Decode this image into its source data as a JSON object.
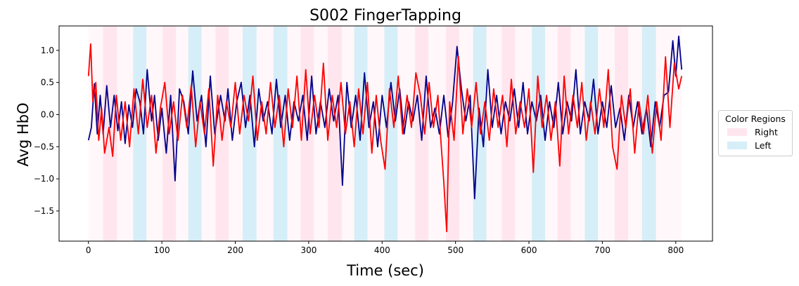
{
  "chart_data": {
    "type": "line",
    "title": "S002 FingerTapping",
    "xlabel": "Time (sec)",
    "ylabel": "Avg HbO",
    "xlim": [
      -40,
      850
    ],
    "ylim": [
      -1.97,
      1.38
    ],
    "xticks": [
      0,
      100,
      200,
      300,
      400,
      500,
      600,
      700,
      800
    ],
    "yticks": [
      -1.5,
      -1.0,
      -0.5,
      0.0,
      0.5,
      1.0
    ],
    "ytick_labels": [
      "−1.5",
      "−1.0",
      "−0.5",
      "0.0",
      "0.5",
      "1.0"
    ],
    "grid": false,
    "regions": {
      "right_color": "#ffe6ee",
      "left_color": "#d6eef8",
      "rest_color": "#fff7fa",
      "right": [
        [
          20,
          39
        ],
        [
          101,
          119
        ],
        [
          173,
          191
        ],
        [
          289,
          307
        ],
        [
          326,
          345
        ],
        [
          445,
          463
        ],
        [
          487,
          505
        ],
        [
          563,
          581
        ],
        [
          639,
          657
        ],
        [
          717,
          735
        ]
      ],
      "left": [
        [
          61,
          79
        ],
        [
          136,
          154
        ],
        [
          210,
          229
        ],
        [
          252,
          271
        ],
        [
          362,
          380
        ],
        [
          403,
          421
        ],
        [
          524,
          542
        ],
        [
          604,
          622
        ],
        [
          676,
          694
        ],
        [
          754,
          773
        ]
      ],
      "rest_span": [
        0,
        808
      ]
    },
    "legend": {
      "title": "Color Regions",
      "placement": "center-right-outside",
      "entries": [
        {
          "label": "Right",
          "color": "#ffe6ee"
        },
        {
          "label": "Left",
          "color": "#d6eef8"
        }
      ]
    },
    "series": [
      {
        "name": "dark-blue-series",
        "color": "#00008b",
        "x": [
          0,
          4,
          8,
          12,
          16,
          20,
          25,
          30,
          35,
          40,
          45,
          50,
          55,
          60,
          65,
          70,
          75,
          80,
          86,
          90,
          95,
          100,
          106,
          112,
          118,
          124,
          130,
          136,
          142,
          148,
          154,
          160,
          166,
          172,
          180,
          186,
          190,
          196,
          202,
          208,
          214,
          220,
          226,
          232,
          238,
          244,
          250,
          256,
          262,
          268,
          274,
          280,
          286,
          292,
          298,
          304,
          310,
          316,
          322,
          328,
          334,
          340,
          346,
          352,
          358,
          364,
          370,
          376,
          382,
          388,
          394,
          400,
          406,
          412,
          418,
          424,
          430,
          436,
          442,
          448,
          454,
          460,
          466,
          472,
          478,
          484,
          490,
          496,
          502,
          508,
          514,
          520,
          526,
          532,
          538,
          544,
          550,
          556,
          562,
          568,
          574,
          580,
          586,
          592,
          598,
          604,
          610,
          616,
          622,
          628,
          634,
          640,
          646,
          652,
          658,
          664,
          670,
          676,
          682,
          688,
          694,
          700,
          706,
          712,
          718,
          724,
          730,
          736,
          742,
          748,
          754,
          760,
          766,
          772,
          778,
          784,
          790,
          796,
          800,
          804,
          808
        ],
        "y": [
          -0.4,
          -0.2,
          0.48,
          -0.3,
          0.3,
          -0.3,
          0.45,
          -0.2,
          0.3,
          -0.25,
          0.2,
          -0.45,
          0.15,
          -0.2,
          0.4,
          0.2,
          -0.3,
          0.7,
          -0.1,
          0.3,
          -0.4,
          0.1,
          -0.6,
          0.3,
          -1.03,
          0.4,
          0.2,
          -0.3,
          0.68,
          -0.1,
          0.3,
          -0.5,
          0.6,
          -0.3,
          0.3,
          -0.1,
          0.4,
          -0.4,
          0.2,
          0.5,
          -0.2,
          0.3,
          -0.5,
          0.4,
          -0.1,
          0.2,
          -0.3,
          0.55,
          -0.2,
          0.3,
          -0.4,
          0.2,
          -0.1,
          0.3,
          -0.4,
          0.6,
          -0.3,
          0.2,
          -0.2,
          0.4,
          -0.1,
          0.3,
          -1.1,
          0.5,
          -0.2,
          0.3,
          -0.4,
          0.65,
          -0.2,
          0.2,
          -0.5,
          0.3,
          -0.2,
          0.5,
          -0.1,
          0.4,
          -0.3,
          0.2,
          -0.1,
          0.3,
          -0.4,
          0.6,
          -0.2,
          0.1,
          -0.3,
          0.3,
          -0.35,
          0.2,
          1.06,
          0.4,
          -0.1,
          0.3,
          -1.31,
          0.1,
          -0.5,
          0.7,
          -0.2,
          0.3,
          -0.3,
          0.2,
          -0.1,
          0.4,
          -0.2,
          0.5,
          -0.3,
          0.2,
          -0.1,
          0.3,
          -0.4,
          0.2,
          -0.2,
          0.5,
          -0.3,
          0.2,
          -0.1,
          0.7,
          -0.3,
          0.2,
          -0.1,
          0.55,
          -0.3,
          0.2,
          -0.2,
          0.45,
          -0.2,
          0.1,
          -0.4,
          0.3,
          -0.2,
          0.2,
          -0.3,
          0.1,
          -0.5,
          0.2,
          -0.2,
          0.3,
          0.35,
          1.15,
          0.6,
          1.22,
          0.7
        ]
      },
      {
        "name": "red-series",
        "color": "#ff0000",
        "x": [
          0,
          3,
          6,
          10,
          14,
          18,
          22,
          28,
          33,
          38,
          44,
          50,
          56,
          62,
          68,
          74,
          80,
          86,
          92,
          98,
          104,
          110,
          116,
          122,
          128,
          134,
          140,
          146,
          152,
          158,
          164,
          170,
          176,
          182,
          188,
          194,
          200,
          206,
          212,
          218,
          224,
          230,
          236,
          242,
          248,
          254,
          260,
          266,
          272,
          278,
          284,
          290,
          296,
          302,
          308,
          314,
          320,
          326,
          332,
          338,
          344,
          350,
          356,
          362,
          368,
          374,
          380,
          386,
          392,
          398,
          404,
          410,
          416,
          422,
          428,
          434,
          440,
          446,
          452,
          458,
          464,
          470,
          476,
          480,
          484,
          488,
          492,
          498,
          504,
          510,
          516,
          522,
          528,
          534,
          540,
          546,
          552,
          558,
          564,
          570,
          576,
          582,
          588,
          594,
          600,
          606,
          612,
          618,
          624,
          630,
          636,
          642,
          648,
          654,
          660,
          666,
          672,
          678,
          684,
          690,
          696,
          702,
          708,
          714,
          720,
          726,
          732,
          738,
          744,
          750,
          756,
          762,
          768,
          774,
          780,
          786,
          792,
          798,
          804,
          808
        ],
        "y": [
          0.6,
          1.1,
          0.2,
          0.5,
          -0.4,
          0.1,
          -0.6,
          -0.2,
          -0.65,
          0.3,
          -0.4,
          0.2,
          -0.5,
          0.4,
          -0.3,
          0.55,
          -0.2,
          0.3,
          -0.6,
          0.1,
          0.5,
          -0.3,
          0.2,
          -0.4,
          0.3,
          -0.2,
          0.45,
          -0.5,
          0.2,
          -0.3,
          0.4,
          -0.8,
          0.3,
          -0.4,
          0.2,
          -0.2,
          0.5,
          -0.3,
          0.3,
          -0.1,
          0.6,
          -0.4,
          0.2,
          -0.3,
          0.5,
          -0.2,
          0.3,
          -0.5,
          0.4,
          -0.2,
          0.6,
          -0.4,
          0.7,
          -0.3,
          0.3,
          -0.2,
          0.8,
          -0.4,
          0.3,
          -0.2,
          0.5,
          -0.3,
          0.2,
          -0.5,
          0.4,
          -0.3,
          0.5,
          -0.6,
          0.3,
          -0.4,
          -0.85,
          0.4,
          -0.2,
          0.6,
          -0.3,
          0.3,
          -0.2,
          0.65,
          0.3,
          -0.3,
          0.5,
          -0.2,
          0.3,
          -0.4,
          -1.05,
          -1.82,
          0.2,
          -0.4,
          0.9,
          -0.3,
          0.4,
          -0.2,
          0.5,
          -0.3,
          0.2,
          -0.4,
          0.4,
          -0.2,
          0.3,
          -0.5,
          0.55,
          -0.3,
          0.2,
          -0.2,
          0.4,
          -0.9,
          0.6,
          -0.2,
          0.3,
          -0.4,
          0.2,
          -0.8,
          0.6,
          -0.3,
          0.3,
          -0.2,
          0.5,
          -0.4,
          0.2,
          -0.3,
          0.4,
          -0.2,
          0.7,
          -0.5,
          -0.85,
          0.3,
          -0.2,
          0.4,
          -0.6,
          0.2,
          -0.3,
          0.3,
          -0.6,
          0.2,
          -0.4,
          0.9,
          -0.2,
          0.8,
          0.4,
          0.6
        ]
      }
    ]
  }
}
